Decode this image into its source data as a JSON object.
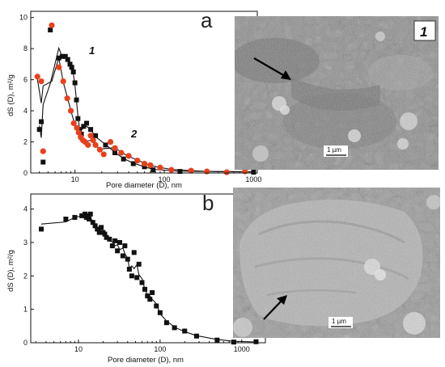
{
  "panels": [
    {
      "letter": "a",
      "curve_labels": [
        "1",
        "2"
      ],
      "sem": {
        "label": "1",
        "scale_bar": "1 µm"
      }
    },
    {
      "letter": "b",
      "sem": {
        "scale_bar": "1 µm"
      }
    }
  ],
  "chart_data": [
    {
      "type": "scatter",
      "panel": "a",
      "xlabel": "Pore diameter (D), nm",
      "ylabel": "dS (D), m²/g",
      "x_scale": "log",
      "xlim": [
        3.2,
        1100
      ],
      "ylim": [
        0,
        10.4
      ],
      "x_ticks": [
        10,
        100,
        1000
      ],
      "y_ticks": [
        0,
        2,
        4,
        6,
        8,
        10
      ],
      "grid": false,
      "series": [
        {
          "name": "1",
          "marker": "square",
          "color": "#111111",
          "points": [
            [
              4.0,
              2.8
            ],
            [
              4.2,
              3.3
            ],
            [
              4.4,
              0.7
            ],
            [
              5.3,
              9.2
            ],
            [
              6.6,
              7.4
            ],
            [
              7.2,
              7.5
            ],
            [
              7.8,
              7.5
            ],
            [
              8.3,
              7.3
            ],
            [
              8.8,
              7.0
            ],
            [
              9.2,
              6.8
            ],
            [
              9.6,
              6.5
            ],
            [
              10.0,
              5.8
            ],
            [
              10.4,
              4.7
            ],
            [
              10.8,
              3.5
            ],
            [
              11.2,
              2.8
            ],
            [
              11.8,
              2.5
            ],
            [
              12.5,
              3.0
            ],
            [
              13.5,
              3.2
            ],
            [
              15,
              2.8
            ],
            [
              17,
              2.4
            ],
            [
              22,
              1.8
            ],
            [
              28,
              1.3
            ],
            [
              35,
              0.9
            ],
            [
              45,
              0.6
            ],
            [
              60,
              0.4
            ],
            [
              75,
              0.2
            ],
            [
              150,
              0.1
            ],
            [
              1000,
              0.05
            ]
          ]
        },
        {
          "name": "2",
          "marker": "circle",
          "color": "#e8401c",
          "points": [
            [
              3.8,
              6.2
            ],
            [
              4.2,
              5.9
            ],
            [
              4.4,
              1.4
            ],
            [
              5.5,
              9.5
            ],
            [
              6.6,
              6.8
            ],
            [
              7.4,
              5.9
            ],
            [
              8.2,
              4.8
            ],
            [
              9.0,
              4.0
            ],
            [
              9.7,
              3.2
            ],
            [
              10.5,
              2.9
            ],
            [
              11.0,
              2.6
            ],
            [
              11.6,
              2.3
            ],
            [
              12.3,
              2.1
            ],
            [
              13,
              2.0
            ],
            [
              14,
              1.8
            ],
            [
              15,
              2.4
            ],
            [
              16,
              2.1
            ],
            [
              17,
              1.8
            ],
            [
              19,
              1.5
            ],
            [
              21,
              1.2
            ],
            [
              25,
              2.0
            ],
            [
              28,
              1.6
            ],
            [
              33,
              1.3
            ],
            [
              40,
              1.1
            ],
            [
              50,
              0.8
            ],
            [
              60,
              0.6
            ],
            [
              70,
              0.5
            ],
            [
              90,
              0.35
            ],
            [
              120,
              0.2
            ],
            [
              200,
              0.15
            ],
            [
              300,
              0.1
            ],
            [
              500,
              0.05
            ],
            [
              800,
              0.1
            ]
          ]
        }
      ]
    },
    {
      "type": "scatter",
      "panel": "b",
      "xlabel": "Pore diameter (D), nm",
      "ylabel": "dS (D), m²/g",
      "x_scale": "log",
      "xlim": [
        2.6,
        1950
      ],
      "ylim": [
        0,
        4.45
      ],
      "x_ticks": [
        10,
        100,
        1000
      ],
      "y_ticks": [
        0,
        1,
        2,
        3,
        4
      ],
      "grid": false,
      "series": [
        {
          "name": "",
          "marker": "square",
          "color": "#111111",
          "points": [
            [
              3.5,
              3.4
            ],
            [
              7,
              3.7
            ],
            [
              9,
              3.75
            ],
            [
              11,
              3.8
            ],
            [
              12,
              3.85
            ],
            [
              12.5,
              3.75
            ],
            [
              13,
              3.8
            ],
            [
              13.5,
              3.7
            ],
            [
              14,
              3.85
            ],
            [
              15,
              3.6
            ],
            [
              16,
              3.5
            ],
            [
              17,
              3.4
            ],
            [
              18,
              3.3
            ],
            [
              19,
              3.45
            ],
            [
              20,
              3.3
            ],
            [
              21,
              3.25
            ],
            [
              22,
              3.15
            ],
            [
              24,
              3.1
            ],
            [
              26,
              2.9
            ],
            [
              28,
              3.05
            ],
            [
              30,
              2.75
            ],
            [
              32,
              3.0
            ],
            [
              35,
              2.6
            ],
            [
              37,
              2.9
            ],
            [
              40,
              2.5
            ],
            [
              42,
              2.2
            ],
            [
              45,
              2.0
            ],
            [
              48,
              2.7
            ],
            [
              52,
              1.95
            ],
            [
              55,
              2.35
            ],
            [
              60,
              1.8
            ],
            [
              65,
              1.6
            ],
            [
              70,
              1.4
            ],
            [
              75,
              1.3
            ],
            [
              80,
              1.5
            ],
            [
              90,
              1.1
            ],
            [
              100,
              0.9
            ],
            [
              120,
              0.6
            ],
            [
              150,
              0.45
            ],
            [
              200,
              0.35
            ],
            [
              280,
              0.2
            ],
            [
              500,
              0.08
            ],
            [
              800,
              0.02
            ],
            [
              1500,
              0.03
            ]
          ]
        }
      ]
    }
  ]
}
